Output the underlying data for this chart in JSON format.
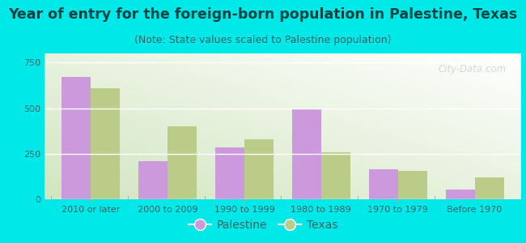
{
  "title": "Year of entry for the foreign-born population in Palestine, Texas",
  "subtitle": "(Note: State values scaled to Palestine population)",
  "categories": [
    "2010 or later",
    "2000 to 2009",
    "1990 to 1999",
    "1980 to 1989",
    "1970 to 1979",
    "Before 1970"
  ],
  "palestine_values": [
    670,
    210,
    285,
    500,
    165,
    55
  ],
  "texas_values": [
    610,
    400,
    330,
    260,
    155,
    120
  ],
  "palestine_color": "#cc99dd",
  "texas_color": "#bbcc88",
  "background_outer": "#00e8e8",
  "background_inner_top_right": "#ffffff",
  "background_inner_bottom_left": "#ccddaa",
  "ylim": [
    0,
    800
  ],
  "yticks": [
    0,
    250,
    500,
    750
  ],
  "grid_color": "#ffffff",
  "bar_width": 0.38,
  "title_fontsize": 12.5,
  "subtitle_fontsize": 9,
  "tick_fontsize": 8,
  "legend_fontsize": 10,
  "title_color": "#004444",
  "subtitle_color": "#336666",
  "tick_color": "#336666",
  "watermark_text": "City-Data.com",
  "watermark_color": "#aabbbb",
  "watermark_alpha": 0.5
}
